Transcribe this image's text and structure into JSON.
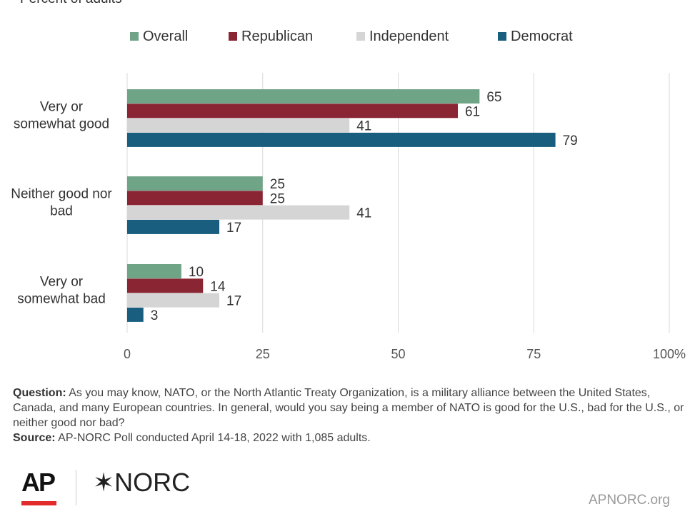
{
  "chart_data": {
    "type": "bar",
    "orientation": "horizontal",
    "subtitle": "Percent of adults",
    "categories": [
      "Very or somewhat good",
      "Neither good nor bad",
      "Very or somewhat bad"
    ],
    "category_lines": [
      [
        "Very or",
        "somewhat good"
      ],
      [
        "Neither good nor",
        "bad"
      ],
      [
        "Very or",
        "somewhat bad"
      ]
    ],
    "series": [
      {
        "name": "Overall",
        "color": "#70a487",
        "values": [
          65,
          25,
          10
        ]
      },
      {
        "name": "Republican",
        "color": "#8a2634",
        "values": [
          61,
          25,
          14
        ]
      },
      {
        "name": "Independent",
        "color": "#d5d5d5",
        "values": [
          41,
          41,
          17
        ]
      },
      {
        "name": "Democrat",
        "color": "#195e7f",
        "values": [
          79,
          17,
          3
        ]
      }
    ],
    "xlim": [
      0,
      100
    ],
    "xticks": [
      "0",
      "25",
      "50",
      "75",
      "100%"
    ],
    "grid": true,
    "legend_position": "top"
  },
  "footnote": {
    "question_label": "Question:",
    "question_text": "As you may know, NATO, or the North Atlantic Treaty Organization, is a military alliance between the United States, Canada, and many European countries. In general, would you say being a member of NATO is good for the U.S., bad for the U.S., or neither good nor bad?",
    "source_label": "Source:",
    "source_text": "AP-NORC Poll conducted April 14-18, 2022 with 1,085 adults."
  },
  "branding": {
    "ap_logo": "AP",
    "norc_logo": "✶NORC",
    "site": "APNORC.org",
    "ap_bar_color": "#e32b2b"
  }
}
